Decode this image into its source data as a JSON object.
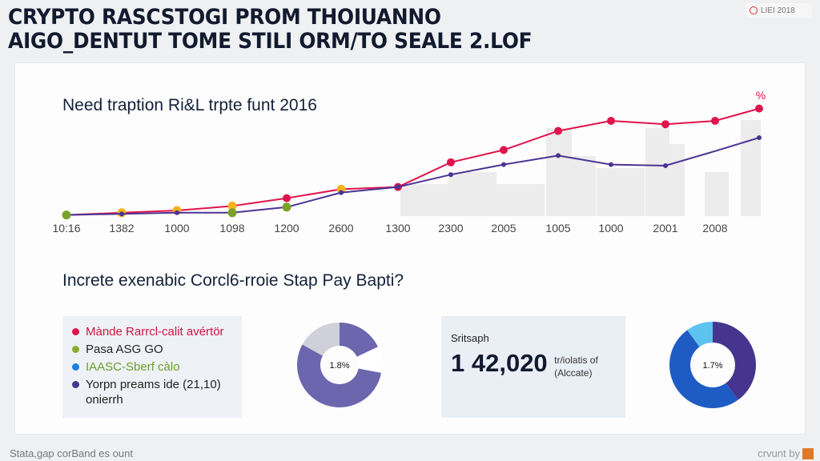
{
  "header": {
    "title_line1": "CRYPTO RASCSTOGI PROM THOIUANNO",
    "title_line2": "AIGO_DENTUT TOME STILI ORM/TO SEALE 2.LOF",
    "badge": "LIEI 2018"
  },
  "chart_data": [
    {
      "type": "line",
      "title": "Need traption Ri&L trpte funt 2016",
      "categories": [
        "10:16",
        "1382",
        "1000",
        "1098",
        "1200",
        "2600",
        "1300",
        "2300",
        "2005",
        "1005",
        "1000",
        "2001",
        "2008",
        ""
      ],
      "ylim": [
        0,
        100
      ],
      "grid": false,
      "annotation": "%",
      "series": [
        {
          "name": "red",
          "color": "#e0144c",
          "values": [
            1,
            3,
            5,
            9,
            16,
            24,
            26,
            48,
            59,
            76,
            85,
            82,
            85,
            96
          ],
          "marker_colors": [
            "#e0144c",
            "#f5b21c",
            "#f5b21c",
            "#f5b21c",
            "#e0144c",
            "#f5b21c",
            "#e0144c",
            "#e0144c",
            "#e0144c",
            "#e0144c",
            "#e0144c",
            "#e0144c",
            "#e0144c",
            "#e0144c"
          ]
        },
        {
          "name": "purple",
          "color": "#4b3494",
          "values": [
            1,
            2,
            3,
            3,
            8,
            21,
            26,
            37,
            46,
            54,
            46,
            45,
            58,
            70
          ],
          "marker_colors": [
            "#7aa22a",
            "#4b3494",
            "#4b3494",
            "#7aa22a",
            "#7aa22a",
            "#4b3494",
            "#4b3494",
            "#4b3494",
            "#4b3494",
            "#4b3494",
            "#4b3494",
            "#4b3494",
            null,
            "#4b3494"
          ]
        }
      ]
    },
    {
      "type": "pie",
      "label": "1.8%",
      "slices": [
        {
          "value": 18,
          "color": "#6b66ad"
        },
        {
          "value": 10,
          "color": "#ffffff"
        },
        {
          "value": 55,
          "color": "#6b66ad"
        },
        {
          "value": 17,
          "color": "#cfd0da"
        }
      ]
    },
    {
      "type": "pie",
      "label": "1.7%",
      "slices": [
        {
          "value": 40,
          "color": "#45358f"
        },
        {
          "value": 50,
          "color": "#1e5cc4"
        },
        {
          "value": 10,
          "color": "#5cc3f0"
        }
      ]
    }
  ],
  "section2": {
    "heading": "Increte exenabic Corcl6-rroie Stap Pay Bapti?"
  },
  "legend": [
    {
      "label": "Mànde Rarrcl-calit avértör",
      "color": "#e0144c",
      "text_color": "#d0143f"
    },
    {
      "label": "Pasa ASG GO",
      "color": "#8aab30",
      "text_color": "#222"
    },
    {
      "label": "IAASC-Sberf càlo",
      "color": "#1e7ee0",
      "text_color": "#6aa22a"
    },
    {
      "label": "Yorpn preams ide (21,10) onierrh",
      "color": "#45358f",
      "text_color": "#222"
    }
  ],
  "stat": {
    "label": "Sritsaph",
    "value": "1 42,020",
    "unit_line1": "tr/iolatis of",
    "unit_line2": "(Alccate)"
  },
  "footer": {
    "left": "Stata,gap corBand es ount",
    "right": "crvunt by"
  }
}
